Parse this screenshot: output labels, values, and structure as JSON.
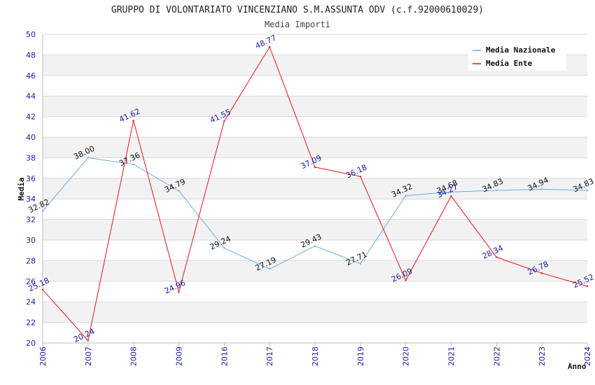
{
  "chart_data": {
    "type": "line",
    "title": "GRUPPO DI VOLONTARIATO VINCENZIANO S.M.ASSUNTA ODV (c.f.92000610029)",
    "subtitle": "Media Importi",
    "xlabel": "Anno",
    "ylabel": "Media",
    "ylim": [
      20,
      50
    ],
    "yticks": [
      "20",
      "22",
      "24",
      "26",
      "28",
      "30",
      "32",
      "34",
      "36",
      "38",
      "40",
      "42",
      "44",
      "46",
      "48",
      "50"
    ],
    "categories": [
      "2006",
      "2007",
      "2008",
      "2009",
      "2016",
      "2017",
      "2018",
      "2019",
      "2020",
      "2021",
      "2022",
      "2023",
      "2024"
    ],
    "grid": true,
    "legend_position": "top-right",
    "series": [
      {
        "name": "Media Nazionale",
        "color": "#6aaee6",
        "values": [
          32.82,
          38.0,
          37.36,
          34.79,
          29.24,
          27.19,
          29.43,
          27.71,
          34.32,
          34.68,
          34.83,
          34.94,
          34.83
        ],
        "labels": [
          "32.82",
          "38.00",
          "37.36",
          "34.79",
          "29.24",
          "27.19",
          "29.43",
          "27.71",
          "34.32",
          "34.68",
          "34.83",
          "34.94",
          "34.83"
        ]
      },
      {
        "name": "Media Ente",
        "color": "#e8141c",
        "values": [
          25.18,
          20.24,
          41.62,
          24.96,
          41.55,
          48.77,
          37.09,
          36.18,
          26.09,
          34.27,
          28.34,
          26.78,
          25.52
        ],
        "labels": [
          "25.18",
          "20.24",
          "41.62",
          "24.96",
          "41.55",
          "48.77",
          "37.09",
          "36.18",
          "26.09",
          "34.27",
          "28.34",
          "26.78",
          "25.52"
        ]
      }
    ]
  }
}
